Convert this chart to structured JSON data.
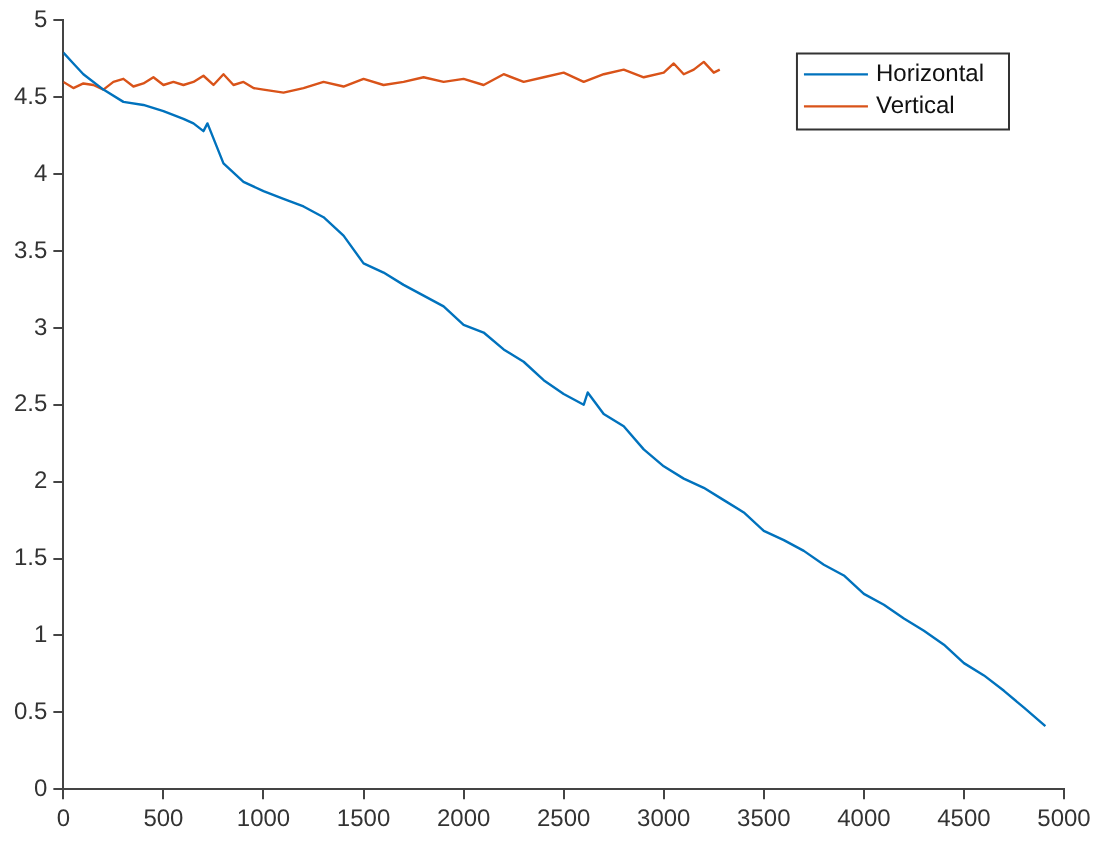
{
  "chart_data": {
    "type": "line",
    "xlim": [
      0,
      5000
    ],
    "xticks": [
      0,
      500,
      1000,
      1500,
      2000,
      2500,
      3000,
      3500,
      4000,
      4500,
      5000
    ],
    "ylim": [
      0,
      5
    ],
    "yticks": [
      0,
      0.5,
      1,
      1.5,
      2,
      2.5,
      3,
      3.5,
      4,
      4.5,
      5
    ],
    "grid": false,
    "legend": "top right",
    "marker": "none",
    "line_style": "solid",
    "series": [
      {
        "name": "Horizontal",
        "color": "#0072bd",
        "x": [
          0,
          50,
          100,
          200,
          300,
          400,
          500,
          600,
          650,
          700,
          720,
          800,
          900,
          1000,
          1100,
          1200,
          1300,
          1400,
          1500,
          1600,
          1700,
          1800,
          1900,
          2000,
          2100,
          2200,
          2300,
          2400,
          2500,
          2600,
          2620,
          2700,
          2800,
          2900,
          3000,
          3100,
          3200,
          3300,
          3400,
          3500,
          3600,
          3700,
          3800,
          3900,
          4000,
          4100,
          4200,
          4300,
          4400,
          4500,
          4600,
          4700,
          4800,
          4907
        ],
        "values": [
          4.79,
          4.72,
          4.65,
          4.55,
          4.47,
          4.45,
          4.41,
          4.36,
          4.33,
          4.28,
          4.33,
          4.07,
          3.95,
          3.89,
          3.84,
          3.79,
          3.72,
          3.6,
          3.42,
          3.36,
          3.28,
          3.21,
          3.14,
          3.02,
          2.97,
          2.86,
          2.78,
          2.66,
          2.57,
          2.5,
          2.58,
          2.44,
          2.36,
          2.21,
          2.1,
          2.02,
          1.96,
          1.88,
          1.8,
          1.68,
          1.62,
          1.55,
          1.46,
          1.39,
          1.27,
          1.2,
          1.11,
          1.03,
          0.94,
          0.82,
          0.74,
          0.64,
          0.53,
          0.41
        ]
      },
      {
        "name": "Vertical",
        "color": "#d95319",
        "x": [
          0,
          50,
          100,
          150,
          200,
          250,
          300,
          350,
          400,
          450,
          500,
          550,
          600,
          650,
          700,
          750,
          800,
          850,
          900,
          950,
          1000,
          1100,
          1200,
          1300,
          1400,
          1500,
          1600,
          1700,
          1800,
          1900,
          2000,
          2100,
          2200,
          2300,
          2400,
          2500,
          2600,
          2700,
          2800,
          2900,
          3000,
          3050,
          3100,
          3150,
          3200,
          3250,
          3280
        ],
        "values": [
          4.6,
          4.56,
          4.59,
          4.58,
          4.55,
          4.6,
          4.62,
          4.57,
          4.59,
          4.63,
          4.58,
          4.6,
          4.58,
          4.6,
          4.64,
          4.58,
          4.65,
          4.58,
          4.6,
          4.56,
          4.55,
          4.53,
          4.56,
          4.6,
          4.57,
          4.62,
          4.58,
          4.6,
          4.63,
          4.6,
          4.62,
          4.58,
          4.65,
          4.6,
          4.63,
          4.66,
          4.6,
          4.65,
          4.68,
          4.63,
          4.66,
          4.72,
          4.65,
          4.68,
          4.73,
          4.66,
          4.68
        ]
      }
    ]
  }
}
